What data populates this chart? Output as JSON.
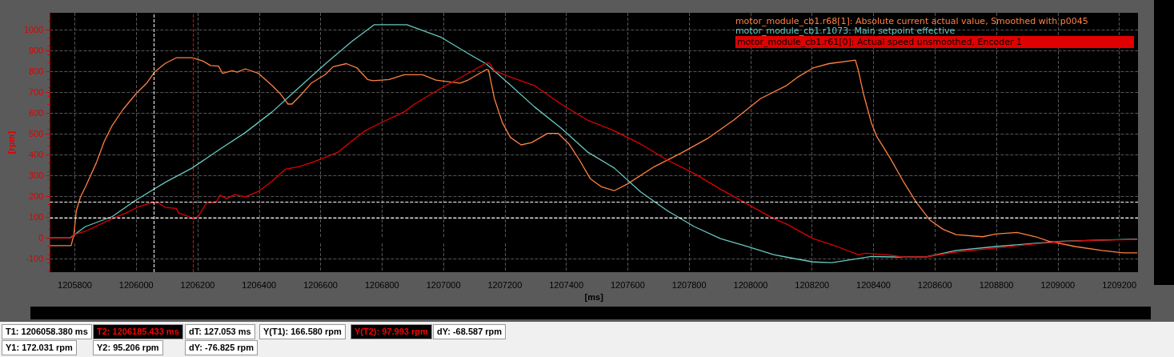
{
  "chart_data": {
    "type": "line",
    "xlabel": "[ms]",
    "ylabel": "[rpm]",
    "xlim": [
      1205719,
      1209261
    ],
    "ylim": [
      -165,
      1080
    ],
    "xticks": [
      1205800,
      1206000,
      1206200,
      1206400,
      1206600,
      1206800,
      1207000,
      1207200,
      1207400,
      1207600,
      1207800,
      1208000,
      1208200,
      1208400,
      1208600,
      1208800,
      1209000,
      1209200
    ],
    "yticks": [
      -100,
      0,
      100,
      200,
      300,
      400,
      500,
      600,
      700,
      800,
      900,
      1000
    ],
    "grid": true,
    "legend": "top right",
    "marker": "none",
    "line_style": "solid",
    "series": [
      {
        "name": "motor_module_cb1.r68[1]: Absolute current actual value, Smoothed with p0045",
        "color": "#ff8040",
        "x": [
          1205719,
          1205788,
          1205797,
          1205805,
          1205818,
          1205835,
          1205870,
          1205896,
          1205922,
          1205957,
          1206000,
          1206035,
          1206061,
          1206095,
          1206130,
          1206182,
          1206216,
          1206242,
          1206268,
          1206281,
          1206312,
          1206329,
          1206355,
          1206398,
          1206442,
          1206468,
          1206494,
          1206507,
          1206537,
          1206571,
          1206615,
          1206641,
          1206684,
          1206719,
          1206753,
          1206771,
          1206823,
          1206872,
          1206932,
          1206976,
          1207054,
          1207080,
          1207140,
          1207147,
          1207166,
          1207192,
          1207218,
          1207253,
          1207287,
          1207339,
          1207374,
          1207409,
          1207443,
          1207478,
          1207513,
          1207556,
          1207599,
          1207686,
          1207772,
          1207859,
          1207945,
          1208032,
          1208117,
          1208152,
          1208203,
          1208255,
          1208341,
          1208350,
          1208367,
          1208393,
          1208410,
          1208453,
          1208497,
          1208540,
          1208583,
          1208626,
          1208669,
          1208755,
          1208798,
          1208867,
          1208928,
          1208971,
          1209057,
          1209143,
          1209212,
          1209259
        ],
        "values": [
          -38,
          -38,
          15,
          130,
          194,
          245,
          360,
          463,
          540,
          616,
          693,
          744,
          798,
          838,
          864,
          864,
          849,
          827,
          824,
          789,
          802,
          795,
          811,
          789,
          731,
          693,
          642,
          642,
          687,
          744,
          783,
          821,
          836,
          815,
          760,
          754,
          760,
          783,
          783,
          757,
          742,
          757,
          808,
          805,
          668,
          552,
          482,
          446,
          457,
          501,
          501,
          450,
          373,
          284,
          246,
          226,
          258,
          341,
          405,
          476,
          565,
          668,
          731,
          770,
          815,
          836,
          853,
          808,
          693,
          552,
          488,
          386,
          271,
          169,
          86,
          41,
          15,
          5,
          18,
          26,
          5,
          -17,
          -42,
          -61,
          -72,
          -72
        ]
      },
      {
        "name": "motor_module_cb1.r1073: Main setpoint effective",
        "color": "#66c8c0",
        "x": [
          1205719,
          1205785,
          1205835,
          1205922,
          1206000,
          1206095,
          1206182,
          1206268,
          1206355,
          1206442,
          1206528,
          1206615,
          1206701,
          1206775,
          1206881,
          1206993,
          1207080,
          1207140,
          1207210,
          1207296,
          1207383,
          1207469,
          1207556,
          1207642,
          1207729,
          1207816,
          1207902,
          1207989,
          1208075,
          1208117,
          1208203,
          1208264,
          1208324,
          1208393,
          1208497,
          1208574,
          1208669,
          1208798,
          1208928,
          1209014,
          1209100,
          1209259
        ],
        "values": [
          0,
          0,
          54,
          102,
          182,
          267,
          335,
          421,
          505,
          604,
          719,
          834,
          942,
          1023,
          1023,
          962,
          885,
          834,
          744,
          629,
          527,
          412,
          335,
          220,
          130,
          54,
          -4,
          -42,
          -81,
          -93,
          -116,
          -119,
          -106,
          -90,
          -93,
          -91,
          -61,
          -42,
          -26,
          -17,
          -13,
          -6
        ]
      },
      {
        "name": "motor_module_cb1.r61[0]: Actual speed unsmoothed, Encoder 1",
        "color": "#e00000",
        "x": [
          1205719,
          1205788,
          1205797,
          1205835,
          1205922,
          1205965,
          1206009,
          1206052,
          1206074,
          1206095,
          1206130,
          1206139,
          1206165,
          1206186,
          1206203,
          1206229,
          1206260,
          1206273,
          1206294,
          1206320,
          1206355,
          1206398,
          1206442,
          1206485,
          1206528,
          1206571,
          1206615,
          1206658,
          1206701,
          1206745,
          1206788,
          1206874,
          1206906,
          1206993,
          1207080,
          1207136,
          1207149,
          1207166,
          1207210,
          1207296,
          1207383,
          1207469,
          1207556,
          1207642,
          1207729,
          1207816,
          1207902,
          1207989,
          1208075,
          1208117,
          1208203,
          1208281,
          1208350,
          1208376,
          1208453,
          1208497,
          1208574,
          1208669,
          1208798,
          1208928,
          1209014,
          1209100,
          1209259
        ],
        "values": [
          0,
          0,
          15,
          31,
          92,
          118,
          150,
          169,
          166,
          146,
          141,
          118,
          105,
          90,
          105,
          169,
          171,
          205,
          188,
          207,
          197,
          223,
          271,
          329,
          341,
          361,
          386,
          412,
          463,
          514,
          546,
          606,
          642,
          719,
          789,
          836,
          840,
          802,
          776,
          731,
          642,
          565,
          514,
          450,
          373,
          309,
          233,
          162,
          92,
          66,
          -4,
          -42,
          -81,
          -74,
          -83,
          -93,
          -91,
          -68,
          -49,
          -29,
          -19,
          -13,
          -8
        ]
      }
    ],
    "ref_lines": [
      {
        "axis": "x",
        "value": 1206058.38,
        "color": "#ffffff",
        "line_style": "dashed"
      },
      {
        "axis": "x",
        "value": 1206185.433,
        "color": "#ff0000",
        "line_style": "dashed"
      },
      {
        "axis": "y",
        "value": 172.031,
        "color": "#ffffff",
        "line_style": "dashed"
      },
      {
        "axis": "y",
        "value": 95.206,
        "color": "#ffffff",
        "line_style": "dashed"
      }
    ],
    "annotations": [
      "T1: 1206058.380 ms",
      "T2: 1206185.433 ms",
      "dT: 127.053 ms",
      "Y(T1):  166.580 rpm",
      "Y(T2): 97.993 rpm",
      "dY: -68.587 rpm",
      "Y1: 172.031 rpm",
      "Y2: 95.206 rpm",
      "dY: -76.825 rpm"
    ]
  }
}
